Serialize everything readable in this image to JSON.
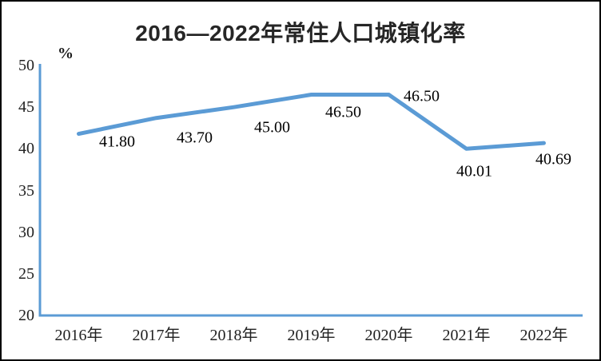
{
  "chart_data": {
    "type": "line",
    "title": "2016—2022年常住人口城镇化率",
    "xlabel": "",
    "ylabel": "%",
    "categories": [
      "2016年",
      "2017年",
      "2018年",
      "2019年",
      "2020年",
      "2021年",
      "2022年"
    ],
    "values": [
      41.8,
      43.7,
      45.0,
      46.5,
      46.5,
      40.01,
      40.69
    ],
    "data_labels": [
      "41.80",
      "43.70",
      "45.00",
      "46.50",
      "46.50",
      "40.01",
      "40.69"
    ],
    "y_ticks": [
      "50",
      "45",
      "40",
      "35",
      "30",
      "25",
      "20"
    ],
    "ylim": [
      20,
      50
    ],
    "grid": "off",
    "legend": "none",
    "line_color": "#5B9BD5",
    "axis_color": "#5B9BD5",
    "label_color": "#000000",
    "title_color": "#262626"
  }
}
